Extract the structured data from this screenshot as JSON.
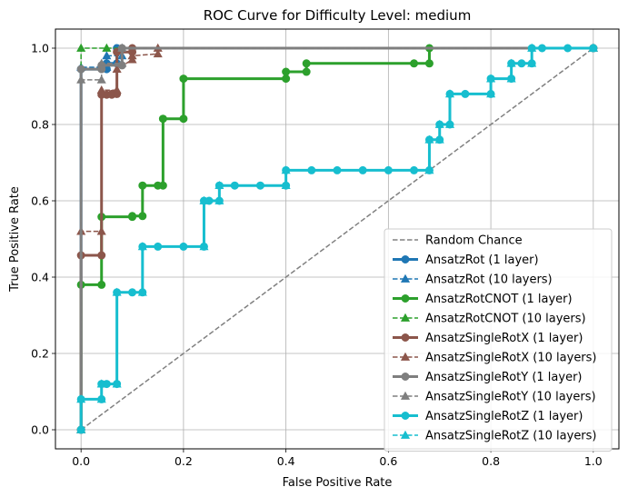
{
  "chart_data": {
    "type": "line",
    "title": "ROC Curve for Difficulty Level: medium",
    "xlabel": "False Positive Rate",
    "ylabel": "True Positive Rate",
    "xlim": [
      -0.05,
      1.05
    ],
    "ylim": [
      -0.05,
      1.05
    ],
    "xticks": [
      "0.0",
      "0.2",
      "0.4",
      "0.6",
      "0.8",
      "1.0"
    ],
    "yticks": [
      "0.0",
      "0.2",
      "0.4",
      "0.6",
      "0.8",
      "1.0"
    ],
    "grid": true,
    "legend_position": "lower-right",
    "series": [
      {
        "name": "Random Chance",
        "color": "#808080",
        "style": "dashed",
        "marker": "none",
        "width": 1.5,
        "points": [
          [
            0,
            0
          ],
          [
            1,
            1
          ]
        ]
      },
      {
        "name": "AnsatzRot (1 layer)",
        "color": "#1f77b4",
        "style": "solid",
        "marker": "circle",
        "width": 3,
        "points": [
          [
            0,
            0
          ],
          [
            0,
            0.945
          ],
          [
            0.05,
            0.945
          ],
          [
            0.05,
            0.96
          ],
          [
            0.07,
            0.96
          ],
          [
            0.07,
            1.0
          ],
          [
            1,
            1
          ]
        ]
      },
      {
        "name": "AnsatzRot (10 layers)",
        "color": "#1f77b4",
        "style": "dashed",
        "marker": "triangle",
        "width": 1.5,
        "points": [
          [
            0,
            0
          ],
          [
            0,
            0.95
          ],
          [
            0.05,
            0.95
          ],
          [
            0.05,
            0.98
          ],
          [
            0.08,
            0.98
          ],
          [
            0.08,
            1.0
          ],
          [
            1,
            1
          ]
        ]
      },
      {
        "name": "AnsatzRotCNOT (1 layer)",
        "color": "#2ca02c",
        "style": "solid",
        "marker": "circle",
        "width": 3,
        "points": [
          [
            0,
            0
          ],
          [
            0,
            0.38
          ],
          [
            0.04,
            0.38
          ],
          [
            0.04,
            0.558
          ],
          [
            0.1,
            0.558
          ],
          [
            0.1,
            0.56
          ],
          [
            0.12,
            0.56
          ],
          [
            0.12,
            0.64
          ],
          [
            0.15,
            0.64
          ],
          [
            0.16,
            0.64
          ],
          [
            0.16,
            0.815
          ],
          [
            0.2,
            0.815
          ],
          [
            0.2,
            0.92
          ],
          [
            0.4,
            0.92
          ],
          [
            0.4,
            0.938
          ],
          [
            0.44,
            0.938
          ],
          [
            0.44,
            0.96
          ],
          [
            0.65,
            0.96
          ],
          [
            0.68,
            0.96
          ],
          [
            0.68,
            1.0
          ],
          [
            1,
            1
          ]
        ]
      },
      {
        "name": "AnsatzRotCNOT (10 layers)",
        "color": "#2ca02c",
        "style": "dashed",
        "marker": "triangle",
        "width": 1.5,
        "points": [
          [
            0,
            0
          ],
          [
            0,
            1.0
          ],
          [
            0.05,
            1.0
          ],
          [
            1,
            1
          ]
        ]
      },
      {
        "name": "AnsatzSingleRotX (1 layer)",
        "color": "#8c564b",
        "style": "solid",
        "marker": "circle",
        "width": 3,
        "points": [
          [
            0,
            0
          ],
          [
            0,
            0.457
          ],
          [
            0.04,
            0.457
          ],
          [
            0.04,
            0.878
          ],
          [
            0.05,
            0.878
          ],
          [
            0.06,
            0.878
          ],
          [
            0.06,
            0.88
          ],
          [
            0.07,
            0.88
          ],
          [
            0.07,
            0.99
          ],
          [
            0.1,
            0.99
          ],
          [
            0.1,
            1.0
          ],
          [
            1,
            1
          ]
        ]
      },
      {
        "name": "AnsatzSingleRotX (10 layers)",
        "color": "#8c564b",
        "style": "dashed",
        "marker": "triangle",
        "width": 1.5,
        "points": [
          [
            0,
            0
          ],
          [
            0,
            0.52
          ],
          [
            0.04,
            0.52
          ],
          [
            0.04,
            0.89
          ],
          [
            0.07,
            0.89
          ],
          [
            0.07,
            0.945
          ],
          [
            0.1,
            0.97
          ],
          [
            0.1,
            0.98
          ],
          [
            0.15,
            0.985
          ],
          [
            0.15,
            1.0
          ],
          [
            1,
            1
          ]
        ]
      },
      {
        "name": "AnsatzSingleRotY (1 layer)",
        "color": "#7f7f7f",
        "style": "solid",
        "marker": "circle",
        "width": 3,
        "points": [
          [
            0,
            0
          ],
          [
            0,
            0.945
          ],
          [
            0.04,
            0.945
          ],
          [
            0.04,
            0.955
          ],
          [
            0.08,
            0.955
          ],
          [
            0.08,
            1.0
          ],
          [
            1,
            1
          ]
        ]
      },
      {
        "name": "AnsatzSingleRotY (10 layers)",
        "color": "#7f7f7f",
        "style": "dashed",
        "marker": "triangle",
        "width": 1.5,
        "points": [
          [
            0,
            0
          ],
          [
            0,
            0.917
          ],
          [
            0.04,
            0.917
          ],
          [
            0.04,
            0.96
          ],
          [
            0.08,
            0.96
          ],
          [
            0.08,
            1.0
          ],
          [
            1,
            1
          ]
        ]
      },
      {
        "name": "AnsatzSingleRotZ (1 layer)",
        "color": "#17becf",
        "style": "solid",
        "marker": "circle",
        "width": 3,
        "points": [
          [
            0,
            0
          ],
          [
            0,
            0.08
          ],
          [
            0.04,
            0.08
          ],
          [
            0.04,
            0.12
          ],
          [
            0.05,
            0.12
          ],
          [
            0.07,
            0.12
          ],
          [
            0.07,
            0.36
          ],
          [
            0.1,
            0.36
          ],
          [
            0.12,
            0.36
          ],
          [
            0.12,
            0.48
          ],
          [
            0.15,
            0.48
          ],
          [
            0.2,
            0.48
          ],
          [
            0.24,
            0.48
          ],
          [
            0.24,
            0.6
          ],
          [
            0.25,
            0.6
          ],
          [
            0.27,
            0.6
          ],
          [
            0.27,
            0.64
          ],
          [
            0.3,
            0.64
          ],
          [
            0.35,
            0.64
          ],
          [
            0.4,
            0.64
          ],
          [
            0.4,
            0.68
          ],
          [
            0.45,
            0.68
          ],
          [
            0.5,
            0.68
          ],
          [
            0.55,
            0.68
          ],
          [
            0.6,
            0.68
          ],
          [
            0.65,
            0.68
          ],
          [
            0.68,
            0.68
          ],
          [
            0.68,
            0.76
          ],
          [
            0.7,
            0.76
          ],
          [
            0.7,
            0.8
          ],
          [
            0.72,
            0.8
          ],
          [
            0.72,
            0.88
          ],
          [
            0.75,
            0.88
          ],
          [
            0.8,
            0.88
          ],
          [
            0.8,
            0.92
          ],
          [
            0.84,
            0.92
          ],
          [
            0.84,
            0.96
          ],
          [
            0.86,
            0.96
          ],
          [
            0.88,
            0.96
          ],
          [
            0.88,
            1.0
          ],
          [
            0.9,
            1.0
          ],
          [
            0.95,
            1.0
          ],
          [
            1,
            1
          ]
        ]
      },
      {
        "name": "AnsatzSingleRotZ (10 layers)",
        "color": "#17becf",
        "style": "dashed",
        "marker": "triangle",
        "width": 1.5,
        "points": [
          [
            0,
            0
          ],
          [
            0,
            0.08
          ],
          [
            0.04,
            0.08
          ],
          [
            0.04,
            0.12
          ],
          [
            0.07,
            0.12
          ],
          [
            0.07,
            0.36
          ],
          [
            0.12,
            0.36
          ],
          [
            0.12,
            0.48
          ],
          [
            0.24,
            0.48
          ],
          [
            0.24,
            0.6
          ],
          [
            0.27,
            0.6
          ],
          [
            0.27,
            0.64
          ],
          [
            0.4,
            0.64
          ],
          [
            0.4,
            0.68
          ],
          [
            0.68,
            0.68
          ],
          [
            0.68,
            0.76
          ],
          [
            0.7,
            0.76
          ],
          [
            0.7,
            0.8
          ],
          [
            0.72,
            0.8
          ],
          [
            0.72,
            0.88
          ],
          [
            0.8,
            0.88
          ],
          [
            0.8,
            0.92
          ],
          [
            0.84,
            0.92
          ],
          [
            0.84,
            0.96
          ],
          [
            0.88,
            0.96
          ],
          [
            0.88,
            1.0
          ],
          [
            1,
            1
          ]
        ]
      }
    ]
  }
}
